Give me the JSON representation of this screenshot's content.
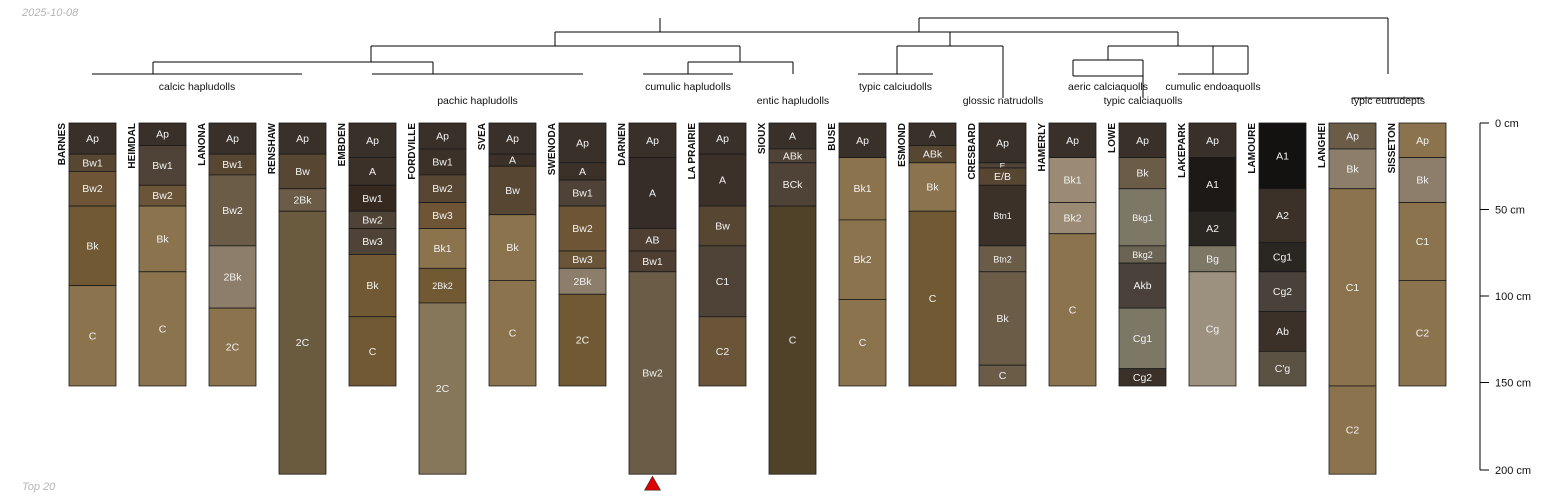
{
  "meta": {
    "date": "2025-10-08",
    "footer": "Top 20"
  },
  "depth_axis": {
    "unit": "cm",
    "max_depth": 200,
    "ticks": [
      {
        "depth": 0,
        "label": "0 cm"
      },
      {
        "depth": 50,
        "label": "50 cm"
      },
      {
        "depth": 100,
        "label": "100 cm"
      },
      {
        "depth": 150,
        "label": "150 cm"
      },
      {
        "depth": 200,
        "label": "200 cm"
      }
    ]
  },
  "profiles": [
    {
      "name": "BARNES",
      "horizons": [
        {
          "name": "Ap",
          "top": 0,
          "bottom": 18,
          "color": "#3a302a"
        },
        {
          "name": "Bw1",
          "top": 18,
          "bottom": 28,
          "color": "#574632"
        },
        {
          "name": "Bw2",
          "top": 28,
          "bottom": 48,
          "color": "#6e5535"
        },
        {
          "name": "Bk",
          "top": 48,
          "bottom": 94,
          "color": "#715a33"
        },
        {
          "name": "C",
          "top": 94,
          "bottom": 152,
          "color": "#8b734d"
        }
      ]
    },
    {
      "name": "HEIMDAL",
      "horizons": [
        {
          "name": "Ap",
          "top": 0,
          "bottom": 13,
          "color": "#3a302a"
        },
        {
          "name": "Bw1",
          "top": 13,
          "bottom": 36,
          "color": "#4f4236"
        },
        {
          "name": "Bw2",
          "top": 36,
          "bottom": 48,
          "color": "#6b5539"
        },
        {
          "name": "Bk",
          "top": 48,
          "bottom": 86,
          "color": "#8b734d"
        },
        {
          "name": "C",
          "top": 86,
          "bottom": 152,
          "color": "#8b734d"
        }
      ]
    },
    {
      "name": "LANONA",
      "horizons": [
        {
          "name": "Ap",
          "top": 0,
          "bottom": 18,
          "color": "#3a302a"
        },
        {
          "name": "Bw1",
          "top": 18,
          "bottom": 30,
          "color": "#574632"
        },
        {
          "name": "Bw2",
          "top": 30,
          "bottom": 71,
          "color": "#6b5c48"
        },
        {
          "name": "2Bk",
          "top": 71,
          "bottom": 107,
          "color": "#8c7e6a"
        },
        {
          "name": "2C",
          "top": 107,
          "bottom": 152,
          "color": "#8b734d"
        }
      ]
    },
    {
      "name": "RENSHAW",
      "horizons": [
        {
          "name": "Ap",
          "top": 0,
          "bottom": 18,
          "color": "#3a302a"
        },
        {
          "name": "Bw",
          "top": 18,
          "bottom": 38,
          "color": "#574632"
        },
        {
          "name": "2Bk",
          "top": 38,
          "bottom": 51,
          "color": "#6b5c48"
        },
        {
          "name": "2C",
          "top": 51,
          "bottom": 203,
          "color": "#6b5b3e"
        }
      ]
    },
    {
      "name": "EMBDEN",
      "horizons": [
        {
          "name": "Ap",
          "top": 0,
          "bottom": 20,
          "color": "#3a302a"
        },
        {
          "name": "A",
          "top": 20,
          "bottom": 36,
          "color": "#3b3129"
        },
        {
          "name": "Bw1",
          "top": 36,
          "bottom": 51,
          "color": "#362a20"
        },
        {
          "name": "Bw2",
          "top": 51,
          "bottom": 61,
          "color": "#4f4236"
        },
        {
          "name": "Bw3",
          "top": 61,
          "bottom": 76,
          "color": "#4f4236"
        },
        {
          "name": "Bk",
          "top": 76,
          "bottom": 112,
          "color": "#715a33"
        },
        {
          "name": "C",
          "top": 112,
          "bottom": 152,
          "color": "#715a33"
        }
      ]
    },
    {
      "name": "FORDVILLE",
      "horizons": [
        {
          "name": "Ap",
          "top": 0,
          "bottom": 15,
          "color": "#3a302a"
        },
        {
          "name": "Bw1",
          "top": 15,
          "bottom": 30,
          "color": "#3b3129"
        },
        {
          "name": "Bw2",
          "top": 30,
          "bottom": 46,
          "color": "#574632"
        },
        {
          "name": "Bw3",
          "top": 46,
          "bottom": 61,
          "color": "#6e5535"
        },
        {
          "name": "Bk1",
          "top": 61,
          "bottom": 84,
          "color": "#8b734d"
        },
        {
          "name": "2Bk2",
          "top": 84,
          "bottom": 104,
          "color": "#715a33"
        },
        {
          "name": "2C",
          "top": 104,
          "bottom": 203,
          "color": "#86765a"
        }
      ]
    },
    {
      "name": "SVEA",
      "horizons": [
        {
          "name": "Ap",
          "top": 0,
          "bottom": 18,
          "color": "#3a302a"
        },
        {
          "name": "A",
          "top": 18,
          "bottom": 25,
          "color": "#3b3129"
        },
        {
          "name": "Bw",
          "top": 25,
          "bottom": 53,
          "color": "#574632"
        },
        {
          "name": "Bk",
          "top": 53,
          "bottom": 91,
          "color": "#8b734d"
        },
        {
          "name": "C",
          "top": 91,
          "bottom": 152,
          "color": "#8b734d"
        }
      ]
    },
    {
      "name": "SWENODA",
      "horizons": [
        {
          "name": "Ap",
          "top": 0,
          "bottom": 23,
          "color": "#3a302a"
        },
        {
          "name": "A",
          "top": 23,
          "bottom": 33,
          "color": "#3b3129"
        },
        {
          "name": "Bw1",
          "top": 33,
          "bottom": 48,
          "color": "#4f4236"
        },
        {
          "name": "Bw2",
          "top": 48,
          "bottom": 74,
          "color": "#6e5535"
        },
        {
          "name": "Bw3",
          "top": 74,
          "bottom": 84,
          "color": "#6b5539"
        },
        {
          "name": "2Bk",
          "top": 84,
          "bottom": 99,
          "color": "#8c7e6a"
        },
        {
          "name": "2C",
          "top": 99,
          "bottom": 152,
          "color": "#715a33"
        }
      ]
    },
    {
      "name": "DARNEN",
      "horizons": [
        {
          "name": "Ap",
          "top": 0,
          "bottom": 20,
          "color": "#3a302a"
        },
        {
          "name": "A",
          "top": 20,
          "bottom": 61,
          "color": "#362d29"
        },
        {
          "name": "AB",
          "top": 61,
          "bottom": 74,
          "color": "#4f3f33"
        },
        {
          "name": "Bw1",
          "top": 74,
          "bottom": 86,
          "color": "#4f3f33"
        },
        {
          "name": "Bw2",
          "top": 86,
          "bottom": 203,
          "color": "#6b5c48"
        }
      ]
    },
    {
      "name": "LA PRAIRIE",
      "horizons": [
        {
          "name": "Ap",
          "top": 0,
          "bottom": 18,
          "color": "#3a302a"
        },
        {
          "name": "A",
          "top": 18,
          "bottom": 48,
          "color": "#3b3129"
        },
        {
          "name": "Bw",
          "top": 48,
          "bottom": 71,
          "color": "#574632"
        },
        {
          "name": "C1",
          "top": 71,
          "bottom": 112,
          "color": "#4f4236"
        },
        {
          "name": "C2",
          "top": 112,
          "bottom": 152,
          "color": "#6b5539"
        }
      ]
    },
    {
      "name": "SIOUX",
      "horizons": [
        {
          "name": "A",
          "top": 0,
          "bottom": 15,
          "color": "#3a302a"
        },
        {
          "name": "ABk",
          "top": 15,
          "bottom": 23,
          "color": "#4f4236"
        },
        {
          "name": "BCk",
          "top": 23,
          "bottom": 48,
          "color": "#4f4236"
        },
        {
          "name": "C",
          "top": 48,
          "bottom": 203,
          "color": "#4f4228"
        }
      ]
    },
    {
      "name": "BUSE",
      "horizons": [
        {
          "name": "Ap",
          "top": 0,
          "bottom": 20,
          "color": "#3a302a"
        },
        {
          "name": "Bk1",
          "top": 20,
          "bottom": 56,
          "color": "#8b734d"
        },
        {
          "name": "Bk2",
          "top": 56,
          "bottom": 102,
          "color": "#8b734d"
        },
        {
          "name": "C",
          "top": 102,
          "bottom": 152,
          "color": "#8b734d"
        }
      ]
    },
    {
      "name": "ESMOND",
      "horizons": [
        {
          "name": "A",
          "top": 0,
          "bottom": 13,
          "color": "#3a302a"
        },
        {
          "name": "ABk",
          "top": 13,
          "bottom": 23,
          "color": "#574632"
        },
        {
          "name": "Bk",
          "top": 23,
          "bottom": 51,
          "color": "#8b734d"
        },
        {
          "name": "C",
          "top": 51,
          "bottom": 152,
          "color": "#715a33"
        }
      ]
    },
    {
      "name": "CRESBARD",
      "horizons": [
        {
          "name": "Ap",
          "top": 0,
          "bottom": 23,
          "color": "#3a302a"
        },
        {
          "name": "E",
          "top": 23,
          "bottom": 26,
          "color": "#4f4236"
        },
        {
          "name": "E/B",
          "top": 26,
          "bottom": 36,
          "color": "#574632"
        },
        {
          "name": "Btn1",
          "top": 36,
          "bottom": 71,
          "color": "#3b3129"
        },
        {
          "name": "Btn2",
          "top": 71,
          "bottom": 86,
          "color": "#6b5c48"
        },
        {
          "name": "Bk",
          "top": 86,
          "bottom": 140,
          "color": "#6b5c48"
        },
        {
          "name": "C",
          "top": 140,
          "bottom": 152,
          "color": "#6b5c48"
        }
      ]
    },
    {
      "name": "HAMERLY",
      "horizons": [
        {
          "name": "Ap",
          "top": 0,
          "bottom": 20,
          "color": "#3a302a"
        },
        {
          "name": "Bk1",
          "top": 20,
          "bottom": 46,
          "color": "#9b8b74"
        },
        {
          "name": "Bk2",
          "top": 46,
          "bottom": 64,
          "color": "#9b8b74"
        },
        {
          "name": "C",
          "top": 64,
          "bottom": 152,
          "color": "#8b734d"
        }
      ]
    },
    {
      "name": "LOWE",
      "horizons": [
        {
          "name": "Ap",
          "top": 0,
          "bottom": 20,
          "color": "#3a302a"
        },
        {
          "name": "Bk",
          "top": 20,
          "bottom": 38,
          "color": "#6b5c48"
        },
        {
          "name": "Bkg1",
          "top": 38,
          "bottom": 71,
          "color": "#7d7766"
        },
        {
          "name": "Bkg2",
          "top": 71,
          "bottom": 81,
          "color": "#6b6353"
        },
        {
          "name": "Akb",
          "top": 81,
          "bottom": 107,
          "color": "#4a423a"
        },
        {
          "name": "Cg1",
          "top": 107,
          "bottom": 142,
          "color": "#7d7766"
        },
        {
          "name": "Cg2",
          "top": 142,
          "bottom": 152,
          "color": "#3b3129"
        }
      ]
    },
    {
      "name": "LAKEPARK",
      "horizons": [
        {
          "name": "Ap",
          "top": 0,
          "bottom": 20,
          "color": "#3a302a"
        },
        {
          "name": "A1",
          "top": 20,
          "bottom": 51,
          "color": "#1c1917"
        },
        {
          "name": "A2",
          "top": 51,
          "bottom": 71,
          "color": "#2a2622"
        },
        {
          "name": "Bg",
          "top": 71,
          "bottom": 86,
          "color": "#7d7766"
        },
        {
          "name": "Cg",
          "top": 86,
          "bottom": 152,
          "color": "#9b917e"
        }
      ]
    },
    {
      "name": "LAMOURE",
      "horizons": [
        {
          "name": "A1",
          "top": 0,
          "bottom": 38,
          "color": "#141210"
        },
        {
          "name": "A2",
          "top": 38,
          "bottom": 69,
          "color": "#3b3129"
        },
        {
          "name": "Cg1",
          "top": 69,
          "bottom": 86,
          "color": "#2a2622"
        },
        {
          "name": "Cg2",
          "top": 86,
          "bottom": 109,
          "color": "#4a423a"
        },
        {
          "name": "Ab",
          "top": 109,
          "bottom": 132,
          "color": "#3b3129"
        },
        {
          "name": "C'g",
          "top": 132,
          "bottom": 152,
          "color": "#5b5244"
        }
      ]
    },
    {
      "name": "LANGHEI",
      "horizons": [
        {
          "name": "Ap",
          "top": 0,
          "bottom": 15,
          "color": "#6b5c48"
        },
        {
          "name": "Bk",
          "top": 15,
          "bottom": 38,
          "color": "#8c7e6a"
        },
        {
          "name": "C1",
          "top": 38,
          "bottom": 152,
          "color": "#8b734d"
        },
        {
          "name": "C2",
          "top": 152,
          "bottom": 203,
          "color": "#8b734d"
        }
      ]
    },
    {
      "name": "SISSETON",
      "horizons": [
        {
          "name": "Ap",
          "top": 0,
          "bottom": 20,
          "color": "#8b734d"
        },
        {
          "name": "Bk",
          "top": 20,
          "bottom": 46,
          "color": "#8c7e6a"
        },
        {
          "name": "C1",
          "top": 46,
          "bottom": 91,
          "color": "#8b734d"
        },
        {
          "name": "C2",
          "top": 91,
          "bottom": 152,
          "color": "#8b734d"
        }
      ]
    }
  ],
  "groups": [
    {
      "label": "calcic hapludolls",
      "members": [
        0,
        1,
        2,
        3
      ]
    },
    {
      "label": "pachic hapludolls",
      "members": [
        4,
        5,
        6,
        7
      ]
    },
    {
      "label": "cumulic hapludolls",
      "members": [
        8,
        9
      ]
    },
    {
      "label": "entic hapludolls",
      "members": [
        10
      ]
    },
    {
      "label": "typic calciudolls",
      "members": [
        11,
        12
      ]
    },
    {
      "label": "glossic natrudolls",
      "members": [
        13
      ]
    },
    {
      "label": "aeric calciaquolls",
      "members": [
        14
      ]
    },
    {
      "label": "typic calciaquolls",
      "members": [
        15
      ]
    },
    {
      "label": "cumulic endoaquolls",
      "members": [
        16,
        17
      ]
    },
    {
      "label": "typic eutrudepts",
      "members": [
        18,
        19
      ]
    }
  ],
  "marker": {
    "profile": "DARNEN",
    "symbol": "triangle",
    "color": "#dd0000"
  }
}
